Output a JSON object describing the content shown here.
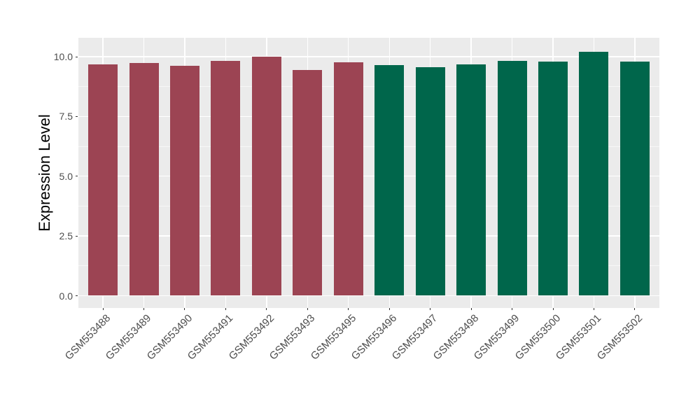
{
  "figure": {
    "page_background": "#FFFFFF",
    "panel_background": "#EBEBEB",
    "grid_major_color": "#FFFFFF",
    "grid_minor_color": "#F7F7F7",
    "tick_color": "#333333",
    "tick_label_color": "#4D4D4D",
    "axis_title_color": "#000000"
  },
  "chart_data": {
    "type": "bar",
    "title": "",
    "xlabel": "",
    "ylabel": "Expression Level",
    "legend": "none",
    "grid": "on",
    "categories": [
      "GSM553488",
      "GSM553489",
      "GSM553490",
      "GSM553491",
      "GSM553492",
      "GSM553493",
      "GSM553495",
      "GSM553496",
      "GSM553497",
      "GSM553498",
      "GSM553499",
      "GSM553500",
      "GSM553501",
      "GSM553502"
    ],
    "values": [
      9.67,
      9.73,
      9.61,
      9.82,
      9.99,
      9.44,
      9.76,
      9.66,
      9.57,
      9.67,
      9.82,
      9.79,
      10.21,
      9.8
    ],
    "groups": [
      "group1",
      "group1",
      "group1",
      "group1",
      "group1",
      "group1",
      "group1",
      "group2",
      "group2",
      "group2",
      "group2",
      "group2",
      "group2",
      "group2"
    ],
    "group_colors": {
      "group1": "#9C4453",
      "group2": "#00664B"
    },
    "y_tick_labels": [
      "0.0",
      "2.5",
      "5.0",
      "7.5",
      "10.0"
    ],
    "y_tick_values": [
      0,
      2.5,
      5,
      7.5,
      10
    ],
    "y_minor_values": [
      1.25,
      3.75,
      6.25,
      8.75
    ],
    "ylim": [
      -0.51,
      10.79
    ]
  }
}
